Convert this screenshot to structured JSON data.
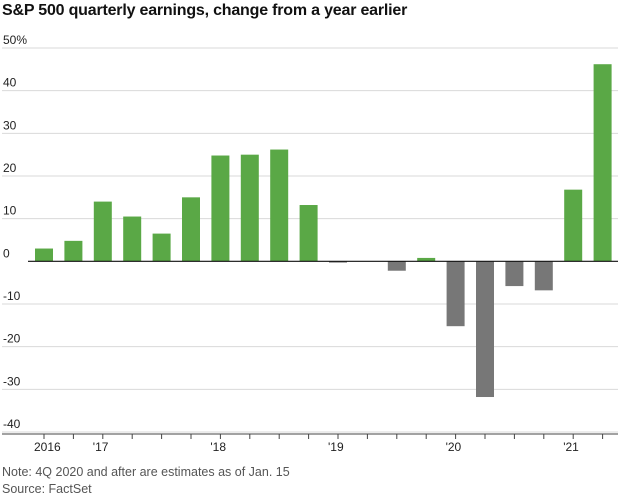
{
  "title": "S&P 500 quarterly earnings, change from a year earlier",
  "notes": {
    "note": "Note: 4Q 2020 and after are estimates as of Jan. 15",
    "source": "Source: FactSet"
  },
  "colors": {
    "positive": "#5aa846",
    "negative": "#777777",
    "grid": "#d9d9d9",
    "zero": "#111111"
  },
  "chart_data": {
    "type": "bar",
    "title": "S&P 500 quarterly earnings, change from a year earlier",
    "xlabel": "",
    "ylabel": "",
    "categories": [
      "2016 Q4",
      "2017 Q1",
      "2017 Q2",
      "2017 Q3",
      "2017 Q4",
      "2018 Q1",
      "2018 Q2",
      "2018 Q3",
      "2018 Q4",
      "2019 Q1",
      "2019 Q2",
      "2019 Q3",
      "2019 Q4",
      "2020 Q1",
      "2020 Q2",
      "2020 Q3",
      "2020 Q4",
      "2021 Q1",
      "2021 Q2",
      "2021 Q3"
    ],
    "values": [
      3.0,
      4.8,
      14.0,
      10.5,
      6.5,
      15.0,
      24.8,
      25.0,
      26.2,
      13.2,
      -0.3,
      0.0,
      -2.2,
      0.8,
      -15.2,
      -31.8,
      -5.8,
      -6.8,
      16.8,
      46.2
    ],
    "x_tick_labels": [
      "2016",
      "'17",
      "'18",
      "'19",
      "'20",
      "'21"
    ],
    "x_tick_positions": [
      0,
      2,
      6,
      10,
      14,
      18
    ],
    "y_ticks": [
      -40,
      -30,
      -20,
      -10,
      0,
      10,
      20,
      30,
      40,
      50
    ],
    "y_tick_labels": [
      "-40",
      "-30",
      "-20",
      "-10",
      "0",
      "10",
      "20",
      "30",
      "40",
      "50%"
    ],
    "ylim": [
      -40,
      50
    ],
    "grid": true,
    "legend": "none"
  }
}
